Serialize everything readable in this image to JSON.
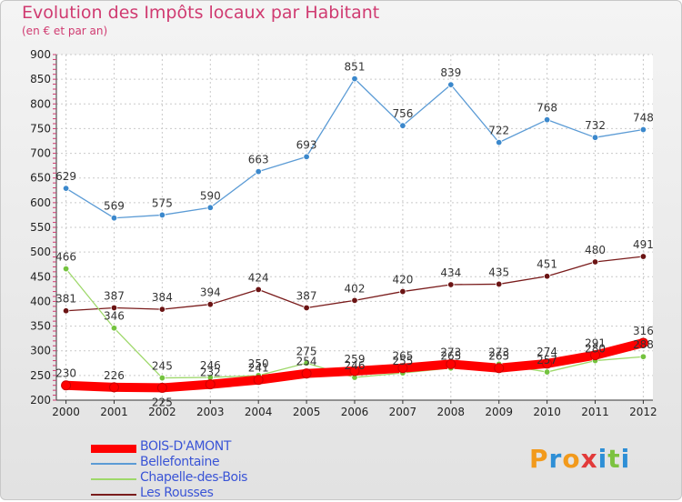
{
  "title": "Evolution des Impôts locaux par Habitant",
  "subtitle": "(en € et par an)",
  "logo": {
    "text": "Proxiti",
    "colors": [
      "#f29a1c",
      "#2e8fd6",
      "#f29a1c",
      "#e23a3a",
      "#2e8fd6",
      "#7cc240",
      "#2e8fd6"
    ]
  },
  "chart_data": {
    "type": "line",
    "x": [
      2000,
      2001,
      2002,
      2003,
      2004,
      2005,
      2006,
      2007,
      2008,
      2009,
      2010,
      2011,
      2012
    ],
    "ylim": [
      200,
      900
    ],
    "yticks": [
      200,
      250,
      300,
      350,
      400,
      450,
      500,
      550,
      600,
      650,
      700,
      750,
      800,
      850,
      900
    ],
    "grid": true,
    "legend_position": "bottom-left",
    "series": [
      {
        "name": "Bellefontaine",
        "color": "#5b9bd5",
        "marker": "#3b88cc",
        "values": [
          629,
          569,
          575,
          590,
          663,
          693,
          851,
          756,
          839,
          722,
          768,
          732,
          748
        ]
      },
      {
        "name": "Les Rousses",
        "color": "#7a1c1c",
        "marker": "#6b1414",
        "values": [
          381,
          387,
          384,
          394,
          424,
          387,
          402,
          420,
          434,
          435,
          451,
          480,
          491
        ]
      },
      {
        "name": "Chapelle-des-Bois",
        "color": "#9ed86a",
        "marker": "#74c33f",
        "values": [
          466,
          346,
          245,
          246,
          250,
          275,
          246,
          255,
          265,
          273,
          257,
          280,
          288
        ]
      },
      {
        "name": "BOIS-D'AMONT",
        "color": "#ff0000",
        "marker": "#ff0000",
        "values": [
          230,
          226,
          225,
          232,
          241,
          254,
          259,
          265,
          273,
          265,
          274,
          291,
          316
        ]
      }
    ],
    "data_labels": [
      {
        "series": 0,
        "i": 0,
        "text": "629",
        "pos": "above"
      },
      {
        "series": 0,
        "i": 1,
        "text": "569",
        "pos": "above"
      },
      {
        "series": 0,
        "i": 2,
        "text": "575",
        "pos": "above"
      },
      {
        "series": 0,
        "i": 3,
        "text": "590",
        "pos": "above"
      },
      {
        "series": 0,
        "i": 4,
        "text": "663",
        "pos": "above"
      },
      {
        "series": 0,
        "i": 5,
        "text": "693",
        "pos": "above"
      },
      {
        "series": 0,
        "i": 6,
        "text": "851",
        "pos": "above"
      },
      {
        "series": 0,
        "i": 7,
        "text": "756",
        "pos": "above"
      },
      {
        "series": 0,
        "i": 8,
        "text": "839",
        "pos": "above"
      },
      {
        "series": 0,
        "i": 9,
        "text": "722",
        "pos": "above"
      },
      {
        "series": 0,
        "i": 10,
        "text": "768",
        "pos": "above"
      },
      {
        "series": 0,
        "i": 11,
        "text": "732",
        "pos": "above"
      },
      {
        "series": 0,
        "i": 12,
        "text": "748",
        "pos": "above"
      },
      {
        "series": 1,
        "i": 0,
        "text": "381",
        "pos": "above"
      },
      {
        "series": 1,
        "i": 1,
        "text": "387",
        "pos": "above"
      },
      {
        "series": 1,
        "i": 2,
        "text": "384",
        "pos": "above"
      },
      {
        "series": 1,
        "i": 3,
        "text": "394",
        "pos": "above"
      },
      {
        "series": 1,
        "i": 4,
        "text": "424",
        "pos": "above"
      },
      {
        "series": 1,
        "i": 5,
        "text": "387",
        "pos": "above"
      },
      {
        "series": 1,
        "i": 6,
        "text": "402",
        "pos": "above"
      },
      {
        "series": 1,
        "i": 7,
        "text": "420",
        "pos": "above"
      },
      {
        "series": 1,
        "i": 8,
        "text": "434",
        "pos": "above"
      },
      {
        "series": 1,
        "i": 9,
        "text": "435",
        "pos": "above"
      },
      {
        "series": 1,
        "i": 10,
        "text": "451",
        "pos": "above"
      },
      {
        "series": 1,
        "i": 11,
        "text": "480",
        "pos": "above"
      },
      {
        "series": 1,
        "i": 12,
        "text": "491",
        "pos": "above"
      },
      {
        "series": 2,
        "i": 0,
        "text": "466",
        "pos": "above"
      },
      {
        "series": 2,
        "i": 1,
        "text": "346",
        "pos": "above"
      },
      {
        "series": 2,
        "i": 2,
        "text": "245",
        "pos": "above"
      },
      {
        "series": 2,
        "i": 3,
        "text": "246",
        "pos": "above"
      },
      {
        "series": 2,
        "i": 4,
        "text": "250",
        "pos": "above"
      },
      {
        "series": 2,
        "i": 5,
        "text": "275",
        "pos": "above"
      },
      {
        "series": 2,
        "i": 6,
        "text": "246",
        "pos": "above"
      },
      {
        "series": 2,
        "i": 7,
        "text": "255",
        "pos": "above"
      },
      {
        "series": 2,
        "i": 8,
        "text": "265",
        "pos": "above"
      },
      {
        "series": 2,
        "i": 9,
        "text": "273",
        "pos": "above"
      },
      {
        "series": 2,
        "i": 10,
        "text": "257",
        "pos": "above"
      },
      {
        "series": 2,
        "i": 11,
        "text": "280",
        "pos": "above"
      },
      {
        "series": 2,
        "i": 12,
        "text": "288",
        "pos": "above"
      },
      {
        "series": 3,
        "i": 0,
        "text": "230",
        "pos": "above"
      },
      {
        "series": 3,
        "i": 1,
        "text": "226",
        "pos": "above"
      },
      {
        "series": 3,
        "i": 2,
        "text": "225",
        "pos": "below"
      },
      {
        "series": 3,
        "i": 3,
        "text": "232",
        "pos": "above"
      },
      {
        "series": 3,
        "i": 4,
        "text": "241",
        "pos": "above"
      },
      {
        "series": 3,
        "i": 5,
        "text": "254",
        "pos": "above"
      },
      {
        "series": 3,
        "i": 6,
        "text": "259",
        "pos": "above"
      },
      {
        "series": 3,
        "i": 7,
        "text": "265",
        "pos": "above"
      },
      {
        "series": 3,
        "i": 8,
        "text": "273",
        "pos": "above"
      },
      {
        "series": 3,
        "i": 9,
        "text": "265",
        "pos": "above"
      },
      {
        "series": 3,
        "i": 10,
        "text": "274",
        "pos": "above"
      },
      {
        "series": 3,
        "i": 11,
        "text": "291",
        "pos": "above"
      },
      {
        "series": 3,
        "i": 12,
        "text": "316",
        "pos": "above"
      }
    ],
    "legend": [
      {
        "label": "BOIS-D'AMONT",
        "series": 3
      },
      {
        "label": "Bellefontaine",
        "series": 0
      },
      {
        "label": "Chapelle-des-Bois",
        "series": 2
      },
      {
        "label": "Les Rousses",
        "series": 1
      }
    ]
  }
}
